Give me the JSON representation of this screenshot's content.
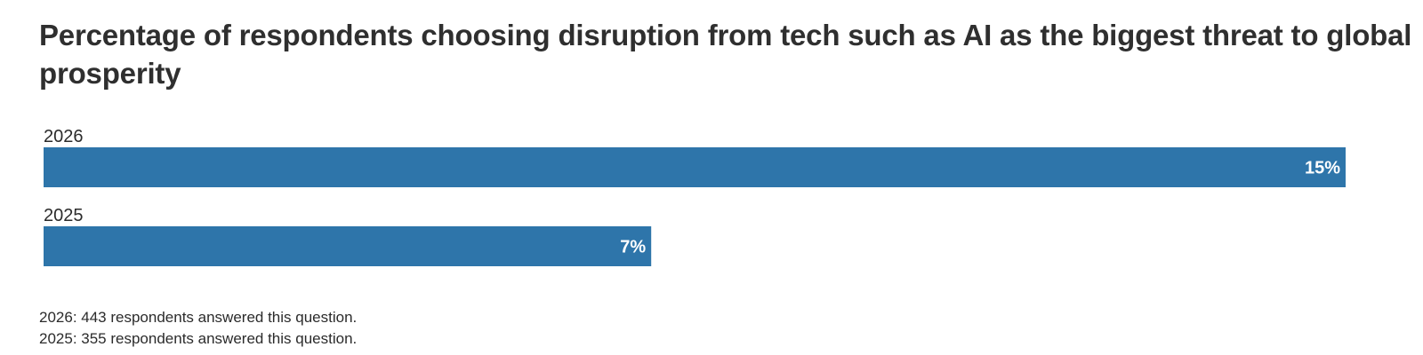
{
  "chart_data": {
    "type": "bar",
    "orientation": "horizontal",
    "title": "Percentage of respondents choosing disruption from tech such as AI as the biggest threat to global prosperity",
    "categories": [
      "2026",
      "2025"
    ],
    "values": [
      15,
      7
    ],
    "value_labels": [
      "15%",
      "7%"
    ],
    "unit": "%",
    "xlim": [
      0,
      15
    ],
    "grid": false,
    "color": "#2e75aa"
  },
  "notes": [
    "2026: 443 respondents answered this question.",
    "2025: 355 respondents answered this question."
  ]
}
